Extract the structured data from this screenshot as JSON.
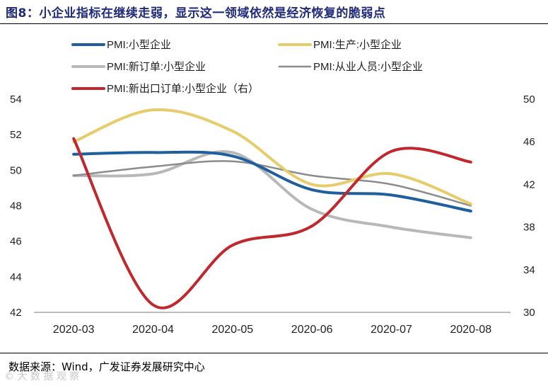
{
  "header": {
    "title": "图8：小企业指标在继续走弱，显示这一领域依然是经济恢复的脆弱点"
  },
  "footer": {
    "source": "数据来源：Wind，广发证券发展研究中心",
    "watermark": "© 大 数 据 观 察"
  },
  "chart_data": {
    "type": "line",
    "categories": [
      "2020-03",
      "2020-04",
      "2020-05",
      "2020-06",
      "2020-07",
      "2020-08"
    ],
    "y_left": {
      "min": 42,
      "max": 54,
      "ticks": [
        42,
        44,
        46,
        48,
        50,
        52,
        54
      ]
    },
    "y_right": {
      "min": 30,
      "max": 50,
      "ticks": [
        30,
        34,
        38,
        42,
        46,
        50
      ]
    },
    "grid": false,
    "legend_position": "top",
    "series": [
      {
        "name": "PMI:小型企业",
        "axis": "left",
        "color": "#1f5f9e",
        "width": 4,
        "values": [
          50.9,
          51.0,
          50.8,
          48.9,
          48.6,
          47.7
        ]
      },
      {
        "name": "PMI:生产:小型企业",
        "axis": "left",
        "color": "#e6cc6a",
        "width": 4,
        "values": [
          51.6,
          53.4,
          52.2,
          49.2,
          49.8,
          48.1
        ]
      },
      {
        "name": "PMI:新订单:小型企业",
        "axis": "left",
        "color": "#b8b8b8",
        "width": 4,
        "values": [
          49.7,
          49.8,
          51.0,
          47.8,
          46.8,
          46.2
        ]
      },
      {
        "name": "PMI:从业人员:小型企业",
        "axis": "left",
        "color": "#8c8c8c",
        "width": 2.5,
        "values": [
          49.7,
          50.2,
          50.5,
          49.7,
          49.2,
          48.0
        ]
      },
      {
        "name": "PMI:新出口订单:小型企业（右）",
        "axis": "right",
        "color": "#c0282d",
        "width": 4,
        "values": [
          46.3,
          30.7,
          36.3,
          38.1,
          45.1,
          44.1
        ]
      }
    ]
  }
}
